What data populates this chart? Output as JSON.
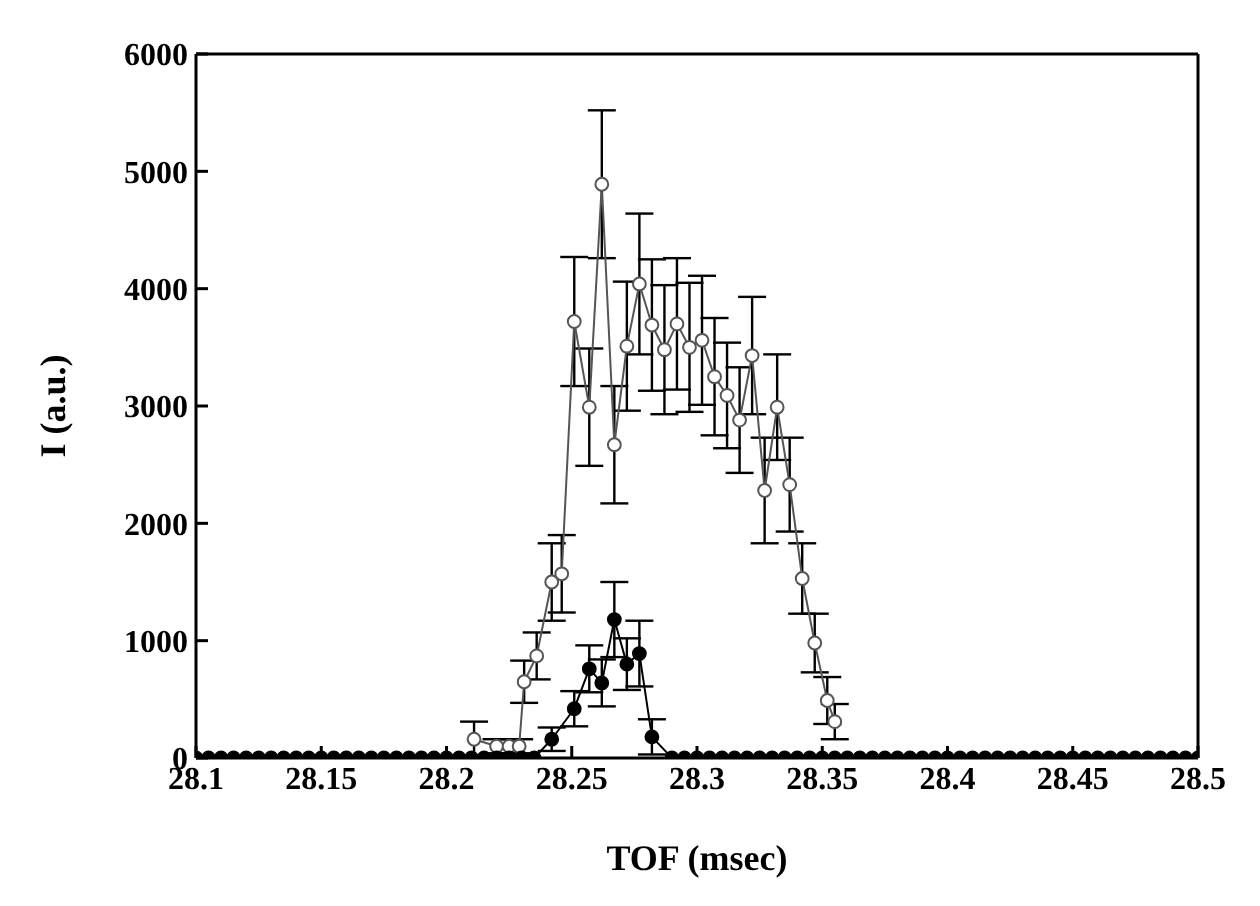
{
  "chart_data": {
    "type": "line",
    "xlabel": "TOF (msec)",
    "ylabel": "I (a.u.)",
    "xlim": [
      28.1,
      28.5
    ],
    "xticks": [
      28.1,
      28.15,
      28.2,
      28.25,
      28.3,
      28.35,
      28.4,
      28.45,
      28.5
    ],
    "ylim": [
      0,
      6000
    ],
    "yticks": [
      0,
      1000,
      2000,
      3000,
      4000,
      5000,
      6000
    ],
    "line_style": "solid",
    "marker": "circle",
    "series": [
      {
        "color": "#555555",
        "x": [
          28.211,
          28.22,
          28.225,
          28.229,
          28.231,
          28.236,
          28.242,
          28.246,
          28.251,
          28.257,
          28.262,
          28.267,
          28.272,
          28.277,
          28.282,
          28.287,
          28.292,
          28.297,
          28.302,
          28.307,
          28.312,
          28.317,
          28.322,
          28.327,
          28.332,
          28.337,
          28.342,
          28.347,
          28.352,
          28.355
        ],
        "values": [
          160,
          100,
          100,
          100,
          650,
          870,
          1500,
          1570,
          3720,
          2990,
          4890,
          2670,
          3510,
          4040,
          3690,
          3480,
          3700,
          3500,
          3560,
          3250,
          3090,
          2880,
          3430,
          2280,
          2990,
          2330,
          1530,
          980,
          490,
          310
        ],
        "errors": [
          150,
          60,
          60,
          60,
          180,
          200,
          330,
          330,
          550,
          500,
          630,
          500,
          550,
          600,
          560,
          550,
          560,
          550,
          550,
          500,
          450,
          450,
          500,
          450,
          450,
          400,
          300,
          250,
          200,
          150
        ]
      },
      {
        "color": "#000000",
        "x": [
          28.1,
          28.105,
          28.11,
          28.115,
          28.12,
          28.125,
          28.13,
          28.135,
          28.14,
          28.145,
          28.15,
          28.155,
          28.16,
          28.165,
          28.17,
          28.175,
          28.18,
          28.185,
          28.19,
          28.195,
          28.2,
          28.205,
          28.21,
          28.215,
          28.22,
          28.225,
          28.23,
          28.235,
          28.242,
          28.251,
          28.257,
          28.262,
          28.267,
          28.272,
          28.277,
          28.282,
          28.29,
          28.295,
          28.3,
          28.305,
          28.31,
          28.315,
          28.32,
          28.325,
          28.33,
          28.335,
          28.34,
          28.345,
          28.35,
          28.355,
          28.36,
          28.365,
          28.37,
          28.375,
          28.38,
          28.385,
          28.39,
          28.395,
          28.4,
          28.405,
          28.41,
          28.415,
          28.42,
          28.425,
          28.43,
          28.435,
          28.44,
          28.445,
          28.45,
          28.455,
          28.46,
          28.465,
          28.47,
          28.475,
          28.48,
          28.485,
          28.49,
          28.495,
          28.5
        ],
        "values": [
          0,
          0,
          0,
          0,
          0,
          0,
          0,
          0,
          0,
          0,
          0,
          0,
          0,
          0,
          0,
          0,
          0,
          0,
          0,
          0,
          0,
          0,
          0,
          0,
          0,
          0,
          0,
          0,
          160,
          420,
          760,
          640,
          1180,
          800,
          890,
          180,
          0,
          0,
          0,
          0,
          0,
          0,
          0,
          0,
          0,
          0,
          0,
          0,
          0,
          0,
          0,
          0,
          0,
          0,
          0,
          0,
          0,
          0,
          0,
          0,
          0,
          0,
          0,
          0,
          0,
          0,
          0,
          0,
          0,
          0,
          0,
          0,
          0,
          0,
          0,
          0,
          0,
          0,
          0
        ],
        "errors": [
          null,
          null,
          null,
          null,
          null,
          null,
          null,
          null,
          null,
          null,
          null,
          null,
          null,
          null,
          null,
          null,
          null,
          null,
          null,
          null,
          null,
          null,
          null,
          null,
          null,
          null,
          null,
          null,
          100,
          150,
          200,
          200,
          320,
          220,
          280,
          150,
          null,
          null,
          null,
          null,
          null,
          null,
          null,
          null,
          null,
          null,
          null,
          null,
          null,
          null,
          null,
          null,
          null,
          null,
          null,
          null,
          null,
          null,
          null,
          null,
          null,
          null,
          null,
          null,
          null,
          null,
          null,
          null,
          null,
          null,
          null,
          null,
          null,
          null,
          null,
          null,
          null,
          null,
          null
        ]
      }
    ]
  }
}
